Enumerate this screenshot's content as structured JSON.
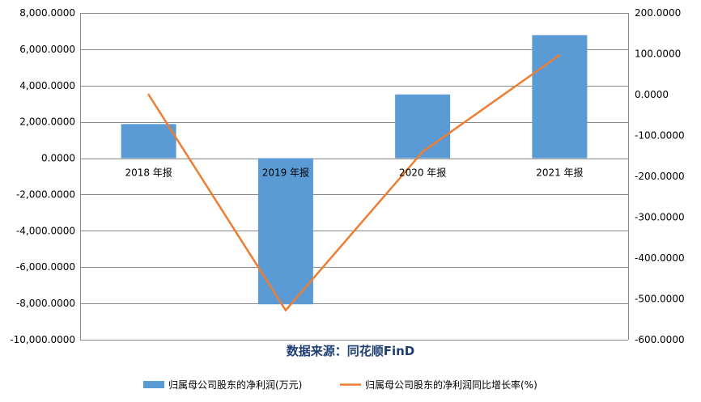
{
  "chart_data": {
    "type": "bar+line",
    "categories": [
      "2018 年报",
      "2019 年报",
      "2020 年报",
      "2021 年报"
    ],
    "series": [
      {
        "name": "归属母公司股东的净利润(万元)",
        "type": "bar",
        "axis": "left",
        "values": [
          1880,
          -8050,
          3510,
          6780
        ]
      },
      {
        "name": "归属母公司股东的净利润同比增长率(%)",
        "type": "line",
        "axis": "right",
        "values": [
          0,
          -528,
          -140,
          97
        ]
      }
    ],
    "y_left": {
      "min": -10000,
      "max": 8000,
      "step": 2000,
      "tick_labels": [
        "8,000.0000",
        "6,000.0000",
        "4,000.0000",
        "2,000.0000",
        "0.0000",
        "-2,000.0000",
        "-4,000.0000",
        "-6,000.0000",
        "-8,000.0000",
        "-10,000.0000"
      ]
    },
    "y_right": {
      "min": -600,
      "max": 200,
      "step": 100,
      "tick_labels": [
        "200.0000",
        "100.0000",
        "0.0000",
        "-100.0000",
        "-200.0000",
        "-300.0000",
        "-400.0000",
        "-500.0000",
        "-600.0000"
      ]
    },
    "source_label": "数据来源：同花顺FinD",
    "grid": true,
    "legend_position": "bottom",
    "colors": {
      "bar": "#5b9bd5",
      "line": "#ed7d31",
      "grid": "#898989"
    }
  }
}
